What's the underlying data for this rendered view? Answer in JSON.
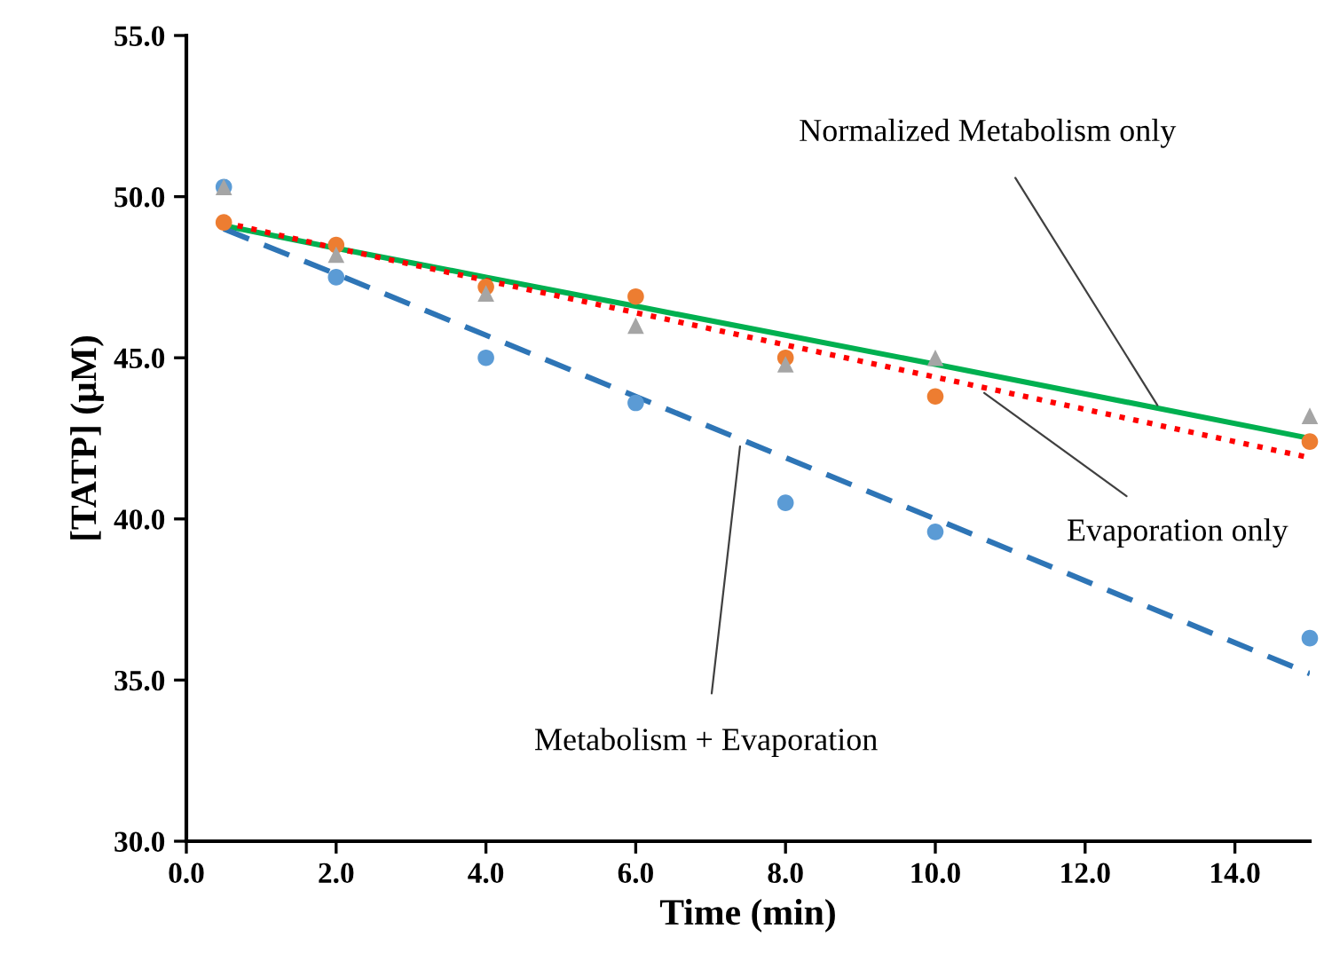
{
  "chart_data": {
    "type": "scatter",
    "xlabel": "Time (min)",
    "ylabel": "[TATP] (μM)",
    "xlim": [
      0,
      15
    ],
    "xticks": [
      {
        "value": 0,
        "label": "0.0"
      },
      {
        "value": 2,
        "label": "2.0"
      },
      {
        "value": 4,
        "label": "4.0"
      },
      {
        "value": 6,
        "label": "6.0"
      },
      {
        "value": 8,
        "label": "8.0"
      },
      {
        "value": 10,
        "label": "10.0"
      },
      {
        "value": 12,
        "label": "12.0"
      },
      {
        "value": 14,
        "label": "14.0"
      }
    ],
    "ylim": [
      30,
      55
    ],
    "yticks": [
      {
        "value": 30,
        "label": "30.0"
      },
      {
        "value": 35,
        "label": "35.0"
      },
      {
        "value": 40,
        "label": "40.0"
      },
      {
        "value": 45,
        "label": "45.0"
      },
      {
        "value": 50,
        "label": "50.0"
      },
      {
        "value": 55,
        "label": "55.0"
      }
    ],
    "x": [
      0.5,
      2,
      4,
      6,
      8,
      10,
      15
    ],
    "series": [
      {
        "marker": "circle",
        "color": "#5b9bd5",
        "values": [
          50.3,
          47.5,
          45.0,
          43.6,
          40.5,
          39.6,
          36.3
        ]
      },
      {
        "marker": "circle",
        "color": "#ed7d31",
        "values": [
          49.2,
          48.5,
          47.2,
          46.9,
          45.0,
          43.8,
          42.4
        ]
      },
      {
        "marker": "triangle",
        "color": "#a5a5a5",
        "values": [
          50.3,
          48.2,
          47.0,
          46.0,
          44.8,
          45.0,
          43.2
        ]
      },
      {
        "type": "line",
        "color": "#00b050",
        "line_style": "solid",
        "values": [
          49.1,
          48.4,
          47.5,
          46.6,
          45.7,
          44.8,
          42.5
        ]
      },
      {
        "type": "line",
        "color": "#ff0000",
        "line_style": "dotted",
        "values": [
          49.2,
          48.4,
          47.4,
          46.4,
          45.4,
          44.4,
          41.9
        ]
      },
      {
        "type": "line",
        "color": "#2e75b6",
        "line_style": "dashed",
        "values": [
          49.0,
          47.6,
          45.7,
          43.8,
          41.9,
          40.0,
          35.2
        ]
      }
    ],
    "annotations": [
      {
        "text": "Normalized Metabolism only",
        "x": 13.0,
        "y": 43.4
      },
      {
        "text": "Evaporation only",
        "x": 10.6,
        "y": 44.0
      },
      {
        "text": "Metabolism + Evaporation",
        "x": 7.4,
        "y": 42.4
      }
    ],
    "grid": false,
    "legend": false
  }
}
